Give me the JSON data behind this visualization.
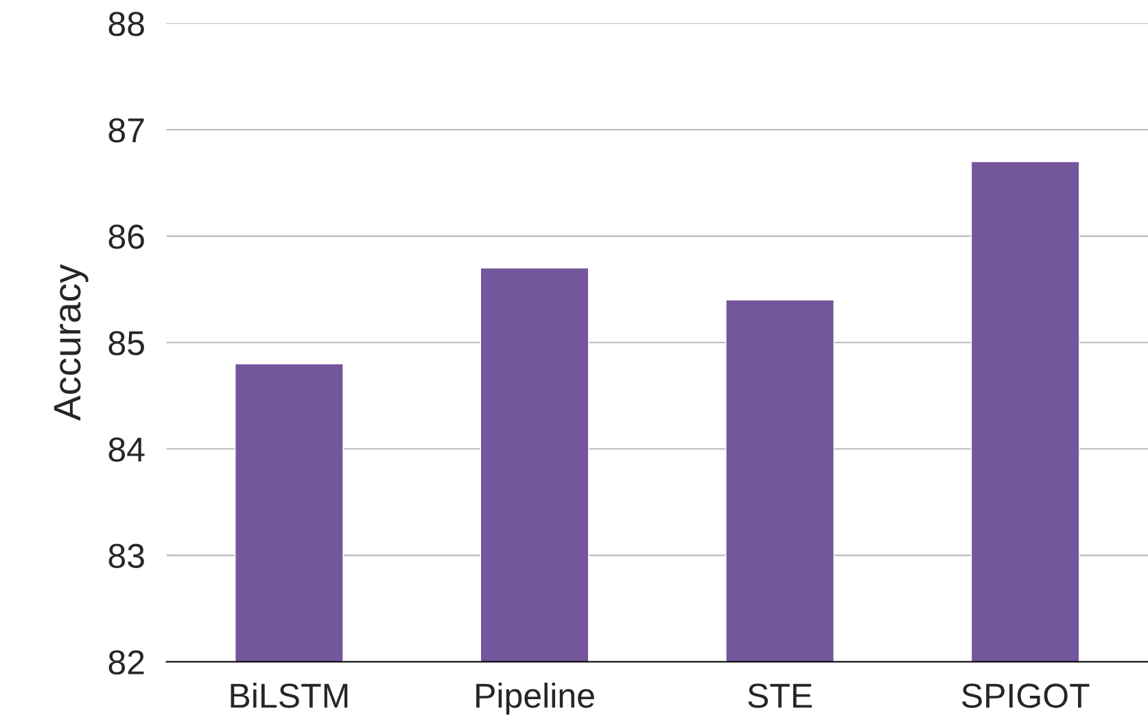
{
  "chart_data": {
    "type": "bar",
    "ylabel": "Accuracy",
    "categories": [
      "BiLSTM",
      "Pipeline",
      "STE",
      "SPIGOT"
    ],
    "values": [
      84.8,
      85.7,
      85.4,
      86.7
    ],
    "color": "#74569c",
    "ylim": [
      82,
      88
    ],
    "yticks": [
      82,
      83,
      84,
      85,
      86,
      87,
      88
    ],
    "grid": "y"
  }
}
